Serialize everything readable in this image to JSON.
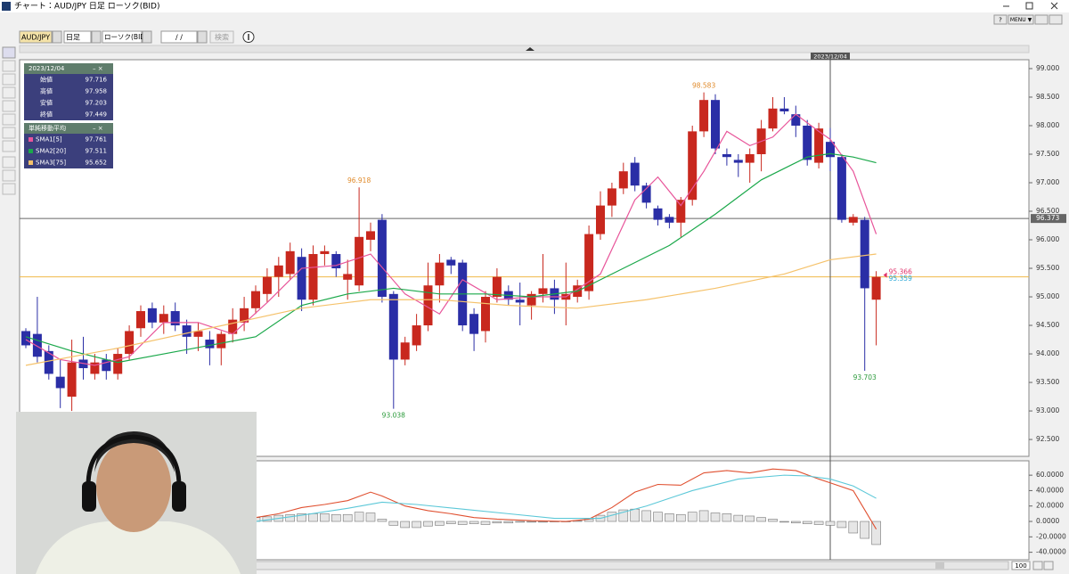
{
  "window": {
    "title": "チャート：AUD/JPY 日足 ローソク(BID)",
    "help": "?",
    "menu": "MENU ▼"
  },
  "toolbar": {
    "symbol": "AUD/JPY",
    "period": "日足",
    "chart_type": "ローソク(BID)",
    "date": "/   /",
    "search": "検索"
  },
  "info_panel": {
    "date": "2023/12/04",
    "rows": [
      {
        "label": "始値",
        "value": 97.716
      },
      {
        "label": "高値",
        "value": 97.958
      },
      {
        "label": "安値",
        "value": 97.203
      },
      {
        "label": "終値",
        "value": 97.449
      }
    ],
    "sma_title": "単純移動平均",
    "sma": [
      {
        "label": "SMA1[5]",
        "value": 97.761,
        "color": "#e8559a"
      },
      {
        "label": "SMA2[20]",
        "value": 97.511,
        "color": "#1aa84a"
      },
      {
        "label": "SMA3[75]",
        "value": 95.652,
        "color": "#f5c26b"
      }
    ]
  },
  "chart_data": [
    {
      "type": "candlestick",
      "up_color": "#c8281e",
      "down_color": "#2a2ea6",
      "ylim": [
        92.22,
        99.14
      ],
      "yticks": [
        {
          "value": 99,
          "label": "99.000"
        },
        {
          "value": 98.5,
          "label": "98.500"
        },
        {
          "value": 98,
          "label": "98.000"
        },
        {
          "value": 97.5,
          "label": "97.500"
        },
        {
          "value": 97,
          "label": "97.000"
        },
        {
          "value": 96.5,
          "label": "96.500"
        },
        {
          "value": 96,
          "label": "96.000"
        },
        {
          "value": 95.5,
          "label": "95.500"
        },
        {
          "value": 95,
          "label": "95.000"
        },
        {
          "value": 94.5,
          "label": "94.500"
        },
        {
          "value": 94,
          "label": "94.000"
        },
        {
          "value": 93.5,
          "label": "93.500"
        },
        {
          "value": 93,
          "label": "93.000"
        },
        {
          "value": 92.5,
          "label": "92.500"
        }
      ],
      "ohlc": [
        [
          94.4,
          94.45,
          94.1,
          94.15
        ],
        [
          94.35,
          95.0,
          93.85,
          93.95
        ],
        [
          94.05,
          94.15,
          93.55,
          93.65
        ],
        [
          93.6,
          93.9,
          93.05,
          93.4
        ],
        [
          93.25,
          94.25,
          93.0,
          93.85
        ],
        [
          93.9,
          94.3,
          93.55,
          93.75
        ],
        [
          93.65,
          94.0,
          93.55,
          93.85
        ],
        [
          93.9,
          94.0,
          93.55,
          93.7
        ],
        [
          93.65,
          94.1,
          93.55,
          94.0
        ],
        [
          94.0,
          94.5,
          93.9,
          94.4
        ],
        [
          94.45,
          94.85,
          94.3,
          94.75
        ],
        [
          94.8,
          94.9,
          94.45,
          94.55
        ],
        [
          94.55,
          94.85,
          94.35,
          94.7
        ],
        [
          94.75,
          94.9,
          94.4,
          94.5
        ],
        [
          94.5,
          94.6,
          94.0,
          94.3
        ],
        [
          94.3,
          94.55,
          94.05,
          94.4
        ],
        [
          94.25,
          94.4,
          93.8,
          94.1
        ],
        [
          94.1,
          94.4,
          93.8,
          94.35
        ],
        [
          94.35,
          94.8,
          94.2,
          94.6
        ],
        [
          94.55,
          95.0,
          94.4,
          94.8
        ],
        [
          94.8,
          95.2,
          94.7,
          95.1
        ],
        [
          95.05,
          95.5,
          94.9,
          95.35
        ],
        [
          95.35,
          95.7,
          95.0,
          95.55
        ],
        [
          95.4,
          95.95,
          95.3,
          95.8
        ],
        [
          95.7,
          95.85,
          94.75,
          94.95
        ],
        [
          94.95,
          95.9,
          94.85,
          95.75
        ],
        [
          95.75,
          95.9,
          95.55,
          95.8
        ],
        [
          95.75,
          95.8,
          95.35,
          95.5
        ],
        [
          95.3,
          95.65,
          94.95,
          95.4
        ],
        [
          95.2,
          96.918,
          95.1,
          96.05
        ],
        [
          96.0,
          96.3,
          95.8,
          96.15
        ],
        [
          96.35,
          96.45,
          94.9,
          95.0
        ],
        [
          95.05,
          95.1,
          93.038,
          93.9
        ],
        [
          93.9,
          94.3,
          93.8,
          94.2
        ],
        [
          94.15,
          94.7,
          94.05,
          94.5
        ],
        [
          94.5,
          95.6,
          94.4,
          95.2
        ],
        [
          95.2,
          95.75,
          94.9,
          95.6
        ],
        [
          95.65,
          95.7,
          95.4,
          95.55
        ],
        [
          95.6,
          95.65,
          94.4,
          94.5
        ],
        [
          94.7,
          94.8,
          94.05,
          94.35
        ],
        [
          94.4,
          95.1,
          94.2,
          95.0
        ],
        [
          95.0,
          95.5,
          94.9,
          95.35
        ],
        [
          95.1,
          95.2,
          94.85,
          94.95
        ],
        [
          94.95,
          95.25,
          94.5,
          94.9
        ],
        [
          94.85,
          95.1,
          94.6,
          95.05
        ],
        [
          95.05,
          95.75,
          94.9,
          95.15
        ],
        [
          95.15,
          95.3,
          94.7,
          94.95
        ],
        [
          94.95,
          95.6,
          94.5,
          95.05
        ],
        [
          95.0,
          95.3,
          94.9,
          95.2
        ],
        [
          95.1,
          96.25,
          94.95,
          96.1
        ],
        [
          96.1,
          96.85,
          96.0,
          96.6
        ],
        [
          96.6,
          97.0,
          96.4,
          96.9
        ],
        [
          96.9,
          97.35,
          96.8,
          97.2
        ],
        [
          97.35,
          97.45,
          96.85,
          96.95
        ],
        [
          96.95,
          97.0,
          96.55,
          96.65
        ],
        [
          96.55,
          96.6,
          96.25,
          96.35
        ],
        [
          96.4,
          96.45,
          96.2,
          96.3
        ],
        [
          96.3,
          96.75,
          96.05,
          96.7
        ],
        [
          96.7,
          98.0,
          96.6,
          97.9
        ],
        [
          97.9,
          98.583,
          97.8,
          98.45
        ],
        [
          98.45,
          98.55,
          97.5,
          97.6
        ],
        [
          97.5,
          97.6,
          97.3,
          97.45
        ],
        [
          97.4,
          97.5,
          97.1,
          97.35
        ],
        [
          97.35,
          97.6,
          97.0,
          97.5
        ],
        [
          97.5,
          98.1,
          97.2,
          97.95
        ],
        [
          97.95,
          98.5,
          97.9,
          98.3
        ],
        [
          98.3,
          98.5,
          98.2,
          98.25
        ],
        [
          98.2,
          98.35,
          97.8,
          98.0
        ],
        [
          98.0,
          98.1,
          97.3,
          97.4
        ],
        [
          97.35,
          98.05,
          97.25,
          97.95
        ],
        [
          97.716,
          97.958,
          97.203,
          97.449
        ],
        [
          97.45,
          97.5,
          96.3,
          96.35
        ],
        [
          96.3,
          96.45,
          96.25,
          96.4
        ],
        [
          96.35,
          96.4,
          93.703,
          95.15
        ],
        [
          94.95,
          95.45,
          94.15,
          95.35
        ]
      ],
      "sma": [
        {
          "name": "SMA1[5]",
          "color": "#e8559a",
          "points": [
            [
              0,
              94.25
            ],
            [
              3,
              93.9
            ],
            [
              6,
              93.8
            ],
            [
              9,
              93.95
            ],
            [
              12,
              94.55
            ],
            [
              15,
              94.55
            ],
            [
              18,
              94.35
            ],
            [
              21,
              94.9
            ],
            [
              24,
              95.5
            ],
            [
              27,
              95.55
            ],
            [
              30,
              95.75
            ],
            [
              33,
              95.05
            ],
            [
              36,
              94.7
            ],
            [
              38,
              95.3
            ],
            [
              41,
              94.95
            ],
            [
              44,
              95.0
            ],
            [
              47,
              95.0
            ],
            [
              50,
              95.4
            ],
            [
              53,
              96.7
            ],
            [
              55,
              97.1
            ],
            [
              57,
              96.6
            ],
            [
              59,
              97.2
            ],
            [
              61,
              97.9
            ],
            [
              63,
              97.65
            ],
            [
              65,
              97.8
            ],
            [
              67,
              98.2
            ],
            [
              69,
              97.9
            ],
            [
              70,
              97.76
            ],
            [
              72,
              97.2
            ],
            [
              74,
              96.1
            ]
          ]
        },
        {
          "name": "SMA2[20]",
          "color": "#1aa84a",
          "points": [
            [
              0,
              94.3
            ],
            [
              4,
              94.05
            ],
            [
              8,
              93.85
            ],
            [
              12,
              94.0
            ],
            [
              16,
              94.15
            ],
            [
              20,
              94.3
            ],
            [
              24,
              94.85
            ],
            [
              28,
              95.05
            ],
            [
              32,
              95.15
            ],
            [
              36,
              95.05
            ],
            [
              40,
              95.05
            ],
            [
              44,
              95.0
            ],
            [
              48,
              95.1
            ],
            [
              52,
              95.5
            ],
            [
              56,
              95.9
            ],
            [
              60,
              96.45
            ],
            [
              64,
              97.05
            ],
            [
              68,
              97.45
            ],
            [
              70,
              97.51
            ],
            [
              72,
              97.45
            ],
            [
              74,
              97.35
            ]
          ]
        },
        {
          "name": "SMA3[75]",
          "color": "#f5c26b",
          "points": [
            [
              0,
              93.8
            ],
            [
              8,
              94.1
            ],
            [
              16,
              94.45
            ],
            [
              24,
              94.8
            ],
            [
              30,
              94.95
            ],
            [
              36,
              94.95
            ],
            [
              42,
              94.85
            ],
            [
              48,
              94.8
            ],
            [
              54,
              94.95
            ],
            [
              60,
              95.15
            ],
            [
              66,
              95.4
            ],
            [
              70,
              95.65
            ],
            [
              74,
              95.75
            ]
          ]
        }
      ],
      "annotations": [
        {
          "index": 59,
          "value": 98.583,
          "color": "#e08a2a"
        },
        {
          "index": 29,
          "value": 96.918,
          "color": "#e08a2a"
        },
        {
          "index": 32,
          "value": 93.038,
          "color": "#2a9a3a"
        },
        {
          "index": 73,
          "value": 93.703,
          "color": "#2a9a3a"
        }
      ],
      "hlines": [
        {
          "value": 96.373,
          "color": "#666666",
          "show_tag": true
        },
        {
          "value": 95.35,
          "color": "#f0b84a",
          "show_tag": false
        }
      ],
      "price_labels": [
        {
          "value": 95.366,
          "color": "#e0306a"
        },
        {
          "value": 95.359,
          "color": "#2aa8d8"
        }
      ],
      "cursor": {
        "index": 70,
        "label": "2023/12/04"
      }
    },
    {
      "type": "macd",
      "ylim": [
        -49.7,
        77.5
      ],
      "yticks": [
        {
          "value": 60,
          "label": "60.0000"
        },
        {
          "value": 40,
          "label": "40.0000"
        },
        {
          "value": 20,
          "label": "20.0000"
        },
        {
          "value": 0,
          "label": "0.0000"
        },
        {
          "value": -20,
          "label": "-20.0000"
        },
        {
          "value": -40,
          "label": "-40.0000"
        }
      ],
      "lines": [
        {
          "color": "#e05030",
          "points": [
            [
              20,
              5
            ],
            [
              22,
              10
            ],
            [
              24,
              18
            ],
            [
              26,
              22
            ],
            [
              28,
              27
            ],
            [
              30,
              38
            ],
            [
              31,
              33
            ],
            [
              33,
              20
            ],
            [
              35,
              14
            ],
            [
              37,
              10
            ],
            [
              39,
              5
            ],
            [
              41,
              3
            ],
            [
              44,
              1
            ],
            [
              47,
              0
            ],
            [
              49,
              3
            ],
            [
              51,
              18
            ],
            [
              53,
              38
            ],
            [
              55,
              48
            ],
            [
              57,
              47
            ],
            [
              59,
              63
            ],
            [
              61,
              66
            ],
            [
              63,
              63
            ],
            [
              65,
              68
            ],
            [
              67,
              66
            ],
            [
              69,
              55
            ],
            [
              70,
              50
            ],
            [
              72,
              40
            ],
            [
              74,
              -10
            ]
          ]
        },
        {
          "color": "#5cc8d8",
          "points": [
            [
              20,
              0
            ],
            [
              24,
              8
            ],
            [
              28,
              17
            ],
            [
              31,
              25
            ],
            [
              34,
              22
            ],
            [
              38,
              16
            ],
            [
              42,
              10
            ],
            [
              46,
              4
            ],
            [
              50,
              4
            ],
            [
              54,
              20
            ],
            [
              58,
              40
            ],
            [
              62,
              55
            ],
            [
              66,
              60
            ],
            [
              68,
              59
            ],
            [
              70,
              55
            ],
            [
              72,
              46
            ],
            [
              74,
              30
            ]
          ]
        }
      ],
      "histogram": [
        null,
        null,
        null,
        null,
        null,
        null,
        null,
        null,
        null,
        null,
        null,
        null,
        null,
        null,
        null,
        null,
        null,
        null,
        null,
        null,
        5,
        6,
        8,
        9,
        10,
        10,
        10,
        9,
        9,
        12,
        11,
        3,
        -5,
        -8,
        -8,
        -6,
        -5,
        -3,
        -4,
        -3,
        -4,
        -2,
        -2,
        -1,
        -1,
        -1,
        0,
        0,
        1,
        3,
        8,
        12,
        15,
        16,
        14,
        12,
        10,
        9,
        12,
        14,
        11,
        10,
        8,
        7,
        5,
        3,
        -1,
        -2,
        -3,
        -4,
        -5,
        -8,
        -15,
        -22,
        -30
      ]
    }
  ],
  "footer": {
    "zoom": "100"
  }
}
